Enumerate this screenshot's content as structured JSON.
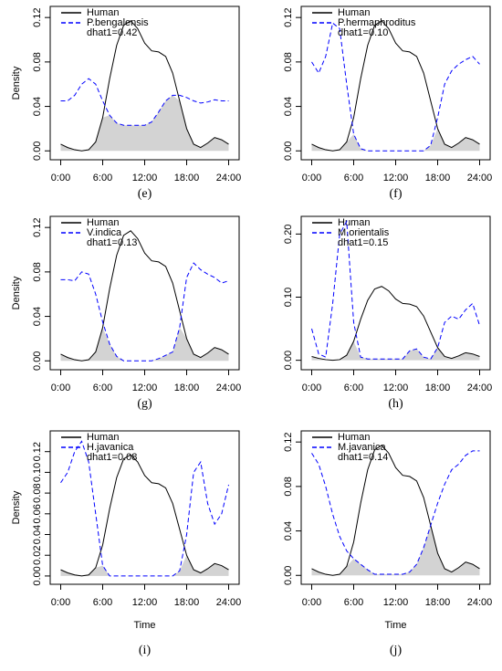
{
  "chart_data": [
    {
      "type": "line",
      "caption": "(e)",
      "ylabel": "Density",
      "annotation": "dhat1=0.42",
      "legend": "upper left",
      "shade_overlap": true,
      "x": [
        0,
        1,
        2,
        3,
        4,
        5,
        6,
        7,
        8,
        9,
        10,
        11,
        12,
        13,
        14,
        15,
        16,
        17,
        18,
        19,
        20,
        21,
        22,
        23,
        24
      ],
      "xlim": [
        -1.5,
        25.5
      ],
      "xticks": [
        {
          "value": 0,
          "label": "0:00"
        },
        {
          "value": 6,
          "label": "6:00"
        },
        {
          "value": 12,
          "label": "12:00"
        },
        {
          "value": 18,
          "label": "18:00"
        },
        {
          "value": 24,
          "label": "24:00"
        }
      ],
      "ylim": [
        -0.008,
        0.13
      ],
      "yticks": [
        {
          "value": 0,
          "label": "0.00"
        },
        0.04,
        0.08,
        0.12
      ],
      "series": [
        {
          "name": "Human",
          "color": "#000000",
          "linestyle": "solid",
          "values": [
            0.006,
            0.003,
            0.001,
            0.0,
            0.001,
            0.008,
            0.03,
            0.065,
            0.095,
            0.113,
            0.117,
            0.11,
            0.097,
            0.09,
            0.089,
            0.085,
            0.07,
            0.045,
            0.02,
            0.006,
            0.003,
            0.007,
            0.012,
            0.01,
            0.006
          ]
        },
        {
          "name": "P.bengalensis",
          "color": "#0000ff",
          "linestyle": "dashed",
          "values": [
            0.045,
            0.045,
            0.05,
            0.06,
            0.065,
            0.06,
            0.045,
            0.032,
            0.025,
            0.023,
            0.023,
            0.023,
            0.023,
            0.026,
            0.035,
            0.045,
            0.05,
            0.05,
            0.048,
            0.045,
            0.043,
            0.044,
            0.046,
            0.045,
            0.045
          ]
        }
      ]
    },
    {
      "type": "line",
      "caption": "(f)",
      "annotation": "dhat1=0.10",
      "legend": "upper left",
      "shade_overlap": true,
      "x": [
        0,
        1,
        2,
        3,
        4,
        5,
        6,
        7,
        8,
        9,
        10,
        11,
        12,
        13,
        14,
        15,
        16,
        17,
        18,
        19,
        20,
        21,
        22,
        23,
        24
      ],
      "xlim": [
        -1.5,
        25.5
      ],
      "xticks": [
        {
          "value": 0,
          "label": "0:00"
        },
        {
          "value": 6,
          "label": "6:00"
        },
        {
          "value": 12,
          "label": "12:00"
        },
        {
          "value": 18,
          "label": "18:00"
        },
        {
          "value": 24,
          "label": "24:00"
        }
      ],
      "ylim": [
        -0.008,
        0.13
      ],
      "yticks": [
        {
          "value": 0,
          "label": "0.00"
        },
        0.04,
        0.08,
        0.12
      ],
      "series": [
        {
          "name": "Human",
          "color": "#000000",
          "linestyle": "solid",
          "values": [
            0.006,
            0.003,
            0.001,
            0.0,
            0.001,
            0.008,
            0.03,
            0.065,
            0.095,
            0.113,
            0.117,
            0.11,
            0.097,
            0.09,
            0.089,
            0.085,
            0.07,
            0.045,
            0.02,
            0.006,
            0.003,
            0.007,
            0.012,
            0.01,
            0.006
          ]
        },
        {
          "name": "P.hermaphroditus",
          "color": "#0000ff",
          "linestyle": "dashed",
          "values": [
            0.08,
            0.07,
            0.085,
            0.115,
            0.11,
            0.06,
            0.015,
            0.002,
            0.0,
            0.0,
            0.0,
            0.0,
            0.0,
            0.0,
            0.0,
            0.0,
            0.0,
            0.005,
            0.03,
            0.06,
            0.072,
            0.078,
            0.082,
            0.085,
            0.078
          ]
        }
      ]
    },
    {
      "type": "line",
      "caption": "(g)",
      "ylabel": "Density",
      "annotation": "dhat1=0.13",
      "legend": "upper left",
      "shade_overlap": true,
      "x": [
        0,
        1,
        2,
        3,
        4,
        5,
        6,
        7,
        8,
        9,
        10,
        11,
        12,
        13,
        14,
        15,
        16,
        17,
        18,
        19,
        20,
        21,
        22,
        23,
        24
      ],
      "xlim": [
        -1.5,
        25.5
      ],
      "xticks": [
        {
          "value": 0,
          "label": "0:00"
        },
        {
          "value": 6,
          "label": "6:00"
        },
        {
          "value": 12,
          "label": "12:00"
        },
        {
          "value": 18,
          "label": "18:00"
        },
        {
          "value": 24,
          "label": "24:00"
        }
      ],
      "ylim": [
        -0.008,
        0.13
      ],
      "yticks": [
        {
          "value": 0,
          "label": "0.00"
        },
        0.04,
        0.08,
        0.12
      ],
      "series": [
        {
          "name": "Human",
          "color": "#000000",
          "linestyle": "solid",
          "values": [
            0.006,
            0.003,
            0.001,
            0.0,
            0.001,
            0.008,
            0.03,
            0.065,
            0.095,
            0.113,
            0.117,
            0.11,
            0.097,
            0.09,
            0.089,
            0.085,
            0.07,
            0.045,
            0.02,
            0.006,
            0.003,
            0.007,
            0.012,
            0.01,
            0.006
          ]
        },
        {
          "name": "V.indica",
          "color": "#0000ff",
          "linestyle": "dashed",
          "values": [
            0.073,
            0.073,
            0.072,
            0.08,
            0.078,
            0.06,
            0.035,
            0.015,
            0.004,
            0.0,
            0.0,
            0.0,
            0.0,
            0.0,
            0.002,
            0.005,
            0.008,
            0.03,
            0.075,
            0.088,
            0.082,
            0.078,
            0.075,
            0.07,
            0.072
          ]
        }
      ]
    },
    {
      "type": "line",
      "caption": "(h)",
      "annotation": "dhat1=0.15",
      "legend": "upper left",
      "shade_overlap": true,
      "x": [
        0,
        1,
        2,
        3,
        4,
        5,
        6,
        7,
        8,
        9,
        10,
        11,
        12,
        13,
        14,
        15,
        16,
        17,
        18,
        19,
        20,
        21,
        22,
        23,
        24
      ],
      "xlim": [
        -1.5,
        25.5
      ],
      "xticks": [
        {
          "value": 0,
          "label": "0:00"
        },
        {
          "value": 6,
          "label": "6:00"
        },
        {
          "value": 12,
          "label": "12:00"
        },
        {
          "value": 18,
          "label": "18:00"
        },
        {
          "value": 24,
          "label": "24:00"
        }
      ],
      "ylim": [
        -0.015,
        0.228
      ],
      "yticks": [
        {
          "value": 0,
          "label": "0.00"
        },
        {
          "value": 0.1,
          "label": "0.10"
        },
        {
          "value": 0.2,
          "label": "0.20"
        }
      ],
      "series": [
        {
          "name": "Human",
          "color": "#000000",
          "linestyle": "solid",
          "values": [
            0.006,
            0.003,
            0.001,
            0.0,
            0.001,
            0.008,
            0.03,
            0.065,
            0.095,
            0.113,
            0.117,
            0.11,
            0.097,
            0.09,
            0.089,
            0.085,
            0.07,
            0.045,
            0.02,
            0.006,
            0.003,
            0.007,
            0.012,
            0.01,
            0.006
          ]
        },
        {
          "name": "M.orientalis",
          "color": "#0000ff",
          "linestyle": "dashed",
          "values": [
            0.05,
            0.01,
            0.005,
            0.09,
            0.2,
            0.22,
            0.06,
            0.005,
            0.002,
            0.002,
            0.002,
            0.002,
            0.002,
            0.002,
            0.015,
            0.018,
            0.005,
            0.002,
            0.02,
            0.06,
            0.07,
            0.065,
            0.08,
            0.09,
            0.055
          ]
        }
      ]
    },
    {
      "type": "line",
      "caption": "(i)",
      "ylabel": "Density",
      "xlabel": "Time",
      "annotation": "dhat1=0.08",
      "legend": "upper left",
      "shade_overlap": true,
      "x": [
        0,
        1,
        2,
        3,
        4,
        5,
        6,
        7,
        8,
        9,
        10,
        11,
        12,
        13,
        14,
        15,
        16,
        17,
        18,
        19,
        20,
        21,
        22,
        23,
        24
      ],
      "xlim": [
        -1.5,
        25.5
      ],
      "xticks": [
        {
          "value": 0,
          "label": "0:00"
        },
        {
          "value": 6,
          "label": "6:00"
        },
        {
          "value": 12,
          "label": "12:00"
        },
        {
          "value": 18,
          "label": "18:00"
        },
        {
          "value": 24,
          "label": "24:00"
        }
      ],
      "ylim": [
        -0.008,
        0.14
      ],
      "yticks": [
        {
          "value": 0,
          "label": "0.00"
        },
        0.02,
        0.04,
        0.06,
        0.08,
        {
          "value": 0.1,
          "label": "0.10"
        },
        0.12
      ],
      "series": [
        {
          "name": "Human",
          "color": "#000000",
          "linestyle": "solid",
          "values": [
            0.006,
            0.003,
            0.001,
            0.0,
            0.001,
            0.008,
            0.03,
            0.065,
            0.095,
            0.113,
            0.117,
            0.11,
            0.097,
            0.09,
            0.089,
            0.085,
            0.07,
            0.045,
            0.02,
            0.006,
            0.003,
            0.007,
            0.012,
            0.01,
            0.006
          ]
        },
        {
          "name": "H.javanica",
          "color": "#0000ff",
          "linestyle": "dashed",
          "values": [
            0.09,
            0.1,
            0.12,
            0.13,
            0.11,
            0.06,
            0.01,
            0.0,
            0.0,
            0.0,
            0.0,
            0.0,
            0.0,
            0.0,
            0.0,
            0.0,
            0.0,
            0.005,
            0.04,
            0.1,
            0.11,
            0.07,
            0.05,
            0.06,
            0.088
          ]
        }
      ]
    },
    {
      "type": "line",
      "caption": "(j)",
      "xlabel": "Time",
      "annotation": "dhat1=0.14",
      "legend": "upper left",
      "shade_overlap": true,
      "x": [
        0,
        1,
        2,
        3,
        4,
        5,
        6,
        7,
        8,
        9,
        10,
        11,
        12,
        13,
        14,
        15,
        16,
        17,
        18,
        19,
        20,
        21,
        22,
        23,
        24
      ],
      "xlim": [
        -1.5,
        25.5
      ],
      "xticks": [
        {
          "value": 0,
          "label": "0:00"
        },
        {
          "value": 6,
          "label": "6:00"
        },
        {
          "value": 12,
          "label": "12:00"
        },
        {
          "value": 18,
          "label": "18:00"
        },
        {
          "value": 24,
          "label": "24:00"
        }
      ],
      "ylim": [
        -0.008,
        0.13
      ],
      "yticks": [
        {
          "value": 0,
          "label": "0.00"
        },
        0.04,
        0.08,
        0.12
      ],
      "series": [
        {
          "name": "Human",
          "color": "#000000",
          "linestyle": "solid",
          "values": [
            0.006,
            0.003,
            0.001,
            0.0,
            0.001,
            0.008,
            0.03,
            0.065,
            0.095,
            0.113,
            0.117,
            0.11,
            0.097,
            0.09,
            0.089,
            0.085,
            0.07,
            0.045,
            0.02,
            0.006,
            0.003,
            0.007,
            0.012,
            0.01,
            0.006
          ]
        },
        {
          "name": "M.javanica",
          "color": "#0000ff",
          "linestyle": "dashed",
          "values": [
            0.11,
            0.1,
            0.08,
            0.055,
            0.035,
            0.022,
            0.015,
            0.01,
            0.005,
            0.001,
            0.001,
            0.001,
            0.001,
            0.001,
            0.003,
            0.01,
            0.025,
            0.045,
            0.065,
            0.082,
            0.095,
            0.1,
            0.108,
            0.112,
            0.112
          ]
        }
      ]
    }
  ]
}
